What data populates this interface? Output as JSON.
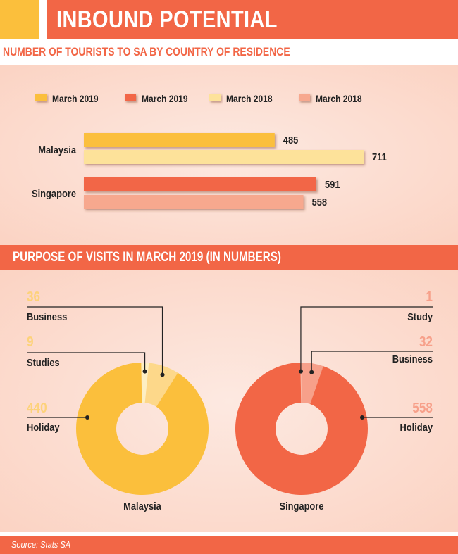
{
  "header": {
    "title": "INBOUND POTENTIAL"
  },
  "subtitle": "NUMBER OF TOURISTS TO SA BY COUNTRY OF RESIDENCE",
  "section_title": "PURPOSE OF VISITS IN MARCH 2019 (IN NUMBERS)",
  "source": "Source: Stats SA",
  "colors": {
    "malaysia_2019": "#fbbf3c",
    "malaysia_2018": "#fde29a",
    "singapore_2019": "#f26646",
    "singapore_2018": "#f7a88e",
    "accent": "#f26646",
    "panel": "#fbd8ca"
  },
  "chart_data": [
    {
      "type": "bar",
      "orientation": "horizontal",
      "legend": [
        "March 2019",
        "March 2019",
        "March 2018",
        "March 2018"
      ],
      "legend_placement": "top",
      "categories": [
        "Malaysia",
        "Singapore"
      ],
      "bars": [
        {
          "country": "Malaysia",
          "year_label": "March 2019",
          "value": 485,
          "color": "#fbbf3c"
        },
        {
          "country": "Malaysia",
          "year_label": "March 2018",
          "value": 711,
          "color": "#fde29a"
        },
        {
          "country": "Singapore",
          "year_label": "March 2019",
          "value": 591,
          "color": "#f26646"
        },
        {
          "country": "Singapore",
          "year_label": "March 2018",
          "value": 558,
          "color": "#f7a88e"
        }
      ],
      "xlim": [
        0,
        711
      ]
    },
    {
      "type": "pie",
      "variant": "donut",
      "label": "Malaysia",
      "slices": [
        {
          "label": "Holiday",
          "value": 440,
          "color": "#fbbf3c"
        },
        {
          "label": "Studies",
          "value": 9,
          "color": "#fdefc4"
        },
        {
          "label": "Business",
          "value": 36,
          "color": "#fdd88a"
        }
      ]
    },
    {
      "type": "pie",
      "variant": "donut",
      "label": "Singapore",
      "slices": [
        {
          "label": "Holiday",
          "value": 558,
          "color": "#f26646"
        },
        {
          "label": "Study",
          "value": 1,
          "color": "#f9c3b2"
        },
        {
          "label": "Business",
          "value": 32,
          "color": "#f7a08a"
        }
      ]
    }
  ]
}
